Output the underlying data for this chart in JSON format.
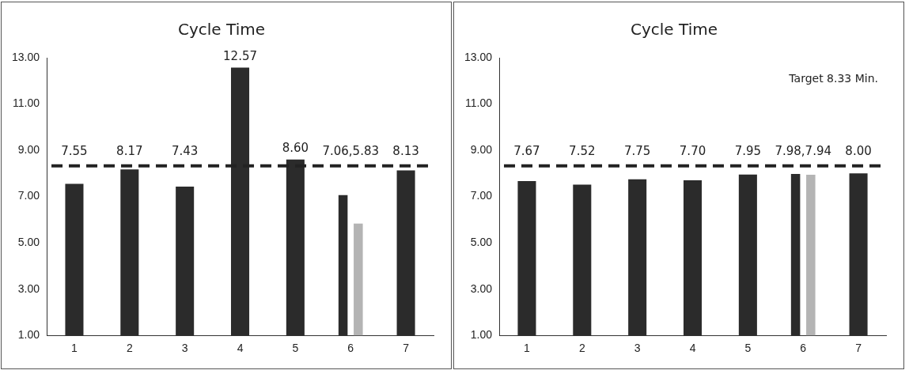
{
  "chart_data": [
    {
      "type": "bar",
      "title": "Cycle Time",
      "categories": [
        "1",
        "2",
        "3",
        "4",
        "5",
        "6",
        "7"
      ],
      "series": [
        {
          "color": "#2b2b2b",
          "values": [
            7.55,
            8.17,
            7.43,
            12.57,
            8.6,
            7.06,
            8.13
          ],
          "value_labels": [
            "7.55",
            "8.17",
            "7.43",
            "12.57",
            "8.60",
            "7.06,5.83",
            "8.13"
          ]
        },
        {
          "color": "#b4b4b4",
          "values": [
            null,
            null,
            null,
            null,
            null,
            5.83,
            null
          ]
        }
      ],
      "ylim": [
        1,
        13
      ],
      "yticks": [
        {
          "value": 1,
          "label": "1.00"
        },
        {
          "value": 3,
          "label": "3.00"
        },
        {
          "value": 5,
          "label": "5.00"
        },
        {
          "value": 7,
          "label": "7.00"
        },
        {
          "value": 9,
          "label": "9.00"
        },
        {
          "value": 11,
          "label": "11.00"
        },
        {
          "value": 13,
          "label": "13.00"
        }
      ],
      "ref_lines": [
        {
          "axis": "y",
          "value": 8.33,
          "color": "#222222",
          "line_style": "dashed"
        }
      ],
      "grid": false,
      "legend": false
    },
    {
      "type": "bar",
      "title": "Cycle Time",
      "categories": [
        "1",
        "2",
        "3",
        "4",
        "5",
        "6",
        "7"
      ],
      "series": [
        {
          "color": "#2b2b2b",
          "values": [
            7.67,
            7.52,
            7.75,
            7.7,
            7.95,
            7.98,
            8.0
          ],
          "value_labels": [
            "7.67",
            "7.52",
            "7.75",
            "7.70",
            "7.95",
            "7.98,7.94",
            "8.00"
          ]
        },
        {
          "color": "#b4b4b4",
          "values": [
            null,
            null,
            null,
            null,
            null,
            7.94,
            null
          ]
        }
      ],
      "ylim": [
        1,
        13
      ],
      "yticks": [
        {
          "value": 1,
          "label": "1.00"
        },
        {
          "value": 3,
          "label": "3.00"
        },
        {
          "value": 5,
          "label": "5.00"
        },
        {
          "value": 7,
          "label": "7.00"
        },
        {
          "value": 9,
          "label": "9.00"
        },
        {
          "value": 11,
          "label": "11.00"
        },
        {
          "value": 13,
          "label": "13.00"
        }
      ],
      "ref_lines": [
        {
          "axis": "y",
          "value": 8.33,
          "label": "Target 8.33 Min.",
          "color": "#222222",
          "line_style": "dashed"
        }
      ],
      "grid": false,
      "legend": false
    }
  ]
}
